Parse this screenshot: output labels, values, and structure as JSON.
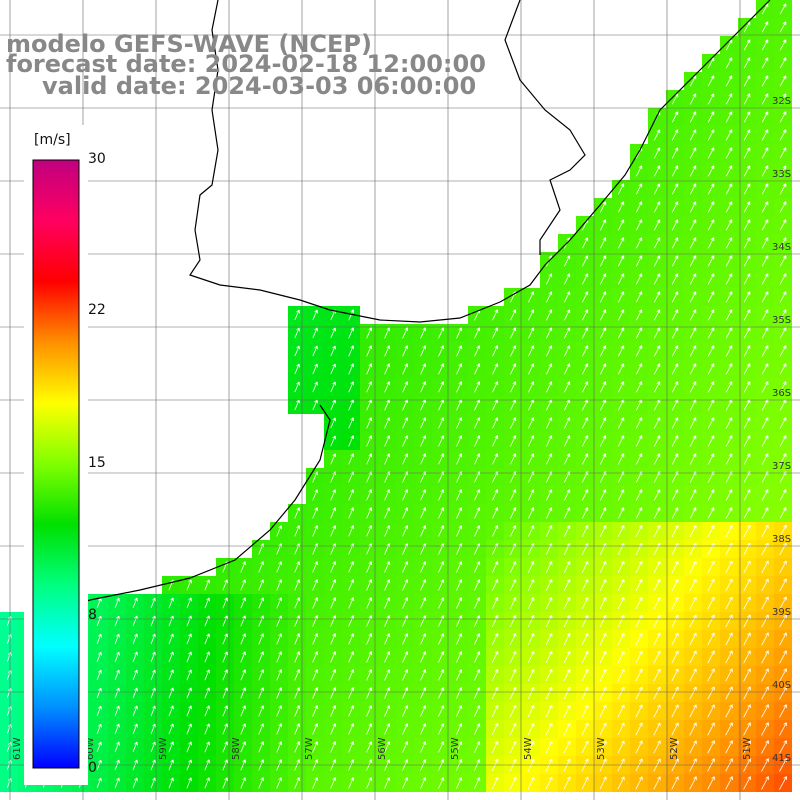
{
  "title": {
    "model": "modelo GEFS-WAVE (NCEP)",
    "forecast": "forecast date: 2024-02-18 12:00:00",
    "valid": "valid date: 2024-03-03 06:00:00"
  },
  "colorbar": {
    "unit": "[m/s]",
    "ticks": [
      "30",
      "22",
      "15",
      "8",
      "0"
    ],
    "colors": [
      "#0000ff",
      "#0090ff",
      "#00ffff",
      "#00ff80",
      "#00e000",
      "#80ff00",
      "#ffff00",
      "#ff9000",
      "#ff0000",
      "#ff0060",
      "#c00080"
    ]
  },
  "grid": {
    "lat_labels": [
      "32S",
      "33S",
      "34S",
      "35S",
      "36S",
      "37S",
      "38S",
      "39S",
      "40S",
      "41S"
    ],
    "lon_labels": [
      "61W",
      "60W",
      "59W",
      "58W",
      "57W",
      "56W",
      "55W",
      "54W",
      "53W",
      "52W",
      "51W"
    ]
  },
  "colors": {
    "land": "#ffffff",
    "coast": "#000000",
    "grid_line": "#666666",
    "title": "#888888"
  }
}
